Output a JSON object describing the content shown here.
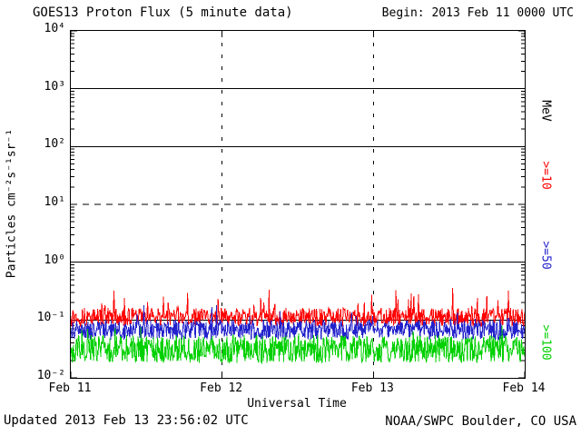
{
  "header": {
    "title": "GOES13 Proton Flux (5 minute data)",
    "begin_label": "Begin: 2013 Feb 11 0000 UTC"
  },
  "footer": {
    "updated_label": "Updated 2013 Feb 13 23:56:02 UTC",
    "credit_label": "NOAA/SWPC Boulder, CO USA"
  },
  "chart_data": {
    "type": "line",
    "title": "GOES13 Proton Flux (5 minute data)",
    "subtitle": "Begin: 2013 Feb 11 0000 UTC",
    "xlabel": "Universal Time",
    "ylabel": "Particles cm⁻²s⁻¹sr⁻¹",
    "y_scale": "log10",
    "ylim": [
      0.01,
      10000
    ],
    "ylim_exp": [
      -2,
      4
    ],
    "x_range_days": 3,
    "x_ticks": [
      "Feb 11",
      "Feb 12",
      "Feb 13",
      "Feb 14"
    ],
    "y_ticks": [
      {
        "label": "10⁴",
        "exp": 4
      },
      {
        "label": "10³",
        "exp": 3
      },
      {
        "label": "10²",
        "exp": 2
      },
      {
        "label": "10¹",
        "exp": 1
      },
      {
        "label": "10⁰",
        "exp": 0
      },
      {
        "label": "10⁻¹",
        "exp": -1
      },
      {
        "label": "10⁻²",
        "exp": -2
      }
    ],
    "gridlines": {
      "solid_exp": [
        3,
        2,
        0,
        -1
      ],
      "dashed_exp": [
        1
      ],
      "vertical_dashed_days": [
        1,
        2
      ]
    },
    "right_axis": {
      "unit_label": "MeV",
      "series_labels": [
        {
          "text": ">=10",
          "color": "#ff0000"
        },
        {
          "text": ">=50",
          "color": "#2222cc"
        },
        {
          "text": ">=100",
          "color": "#00d000"
        }
      ]
    },
    "series": [
      {
        "name": "Protons >=10 MeV",
        "color": "#ff0000",
        "points": 864,
        "seed": 13,
        "base_log10": -0.95,
        "noise_log10": 0.16,
        "spike_log10": 0.45,
        "spike_prob": 0.05,
        "flux_range_approx": [
          0.07,
          0.4
        ]
      },
      {
        "name": "Protons >=50 MeV",
        "color": "#2222cc",
        "points": 864,
        "seed": 50,
        "base_log10": -1.17,
        "noise_log10": 0.17,
        "spike_log10": 0.28,
        "spike_prob": 0.05,
        "flux_range_approx": [
          0.04,
          0.16
        ]
      },
      {
        "name": "Protons >=100 MeV",
        "color": "#00d000",
        "points": 864,
        "seed": 100,
        "base_log10": -1.5,
        "noise_log10": 0.24,
        "spike_log10": 0.25,
        "spike_prob": 0.04,
        "flux_range_approx": [
          0.015,
          0.08
        ]
      }
    ]
  }
}
